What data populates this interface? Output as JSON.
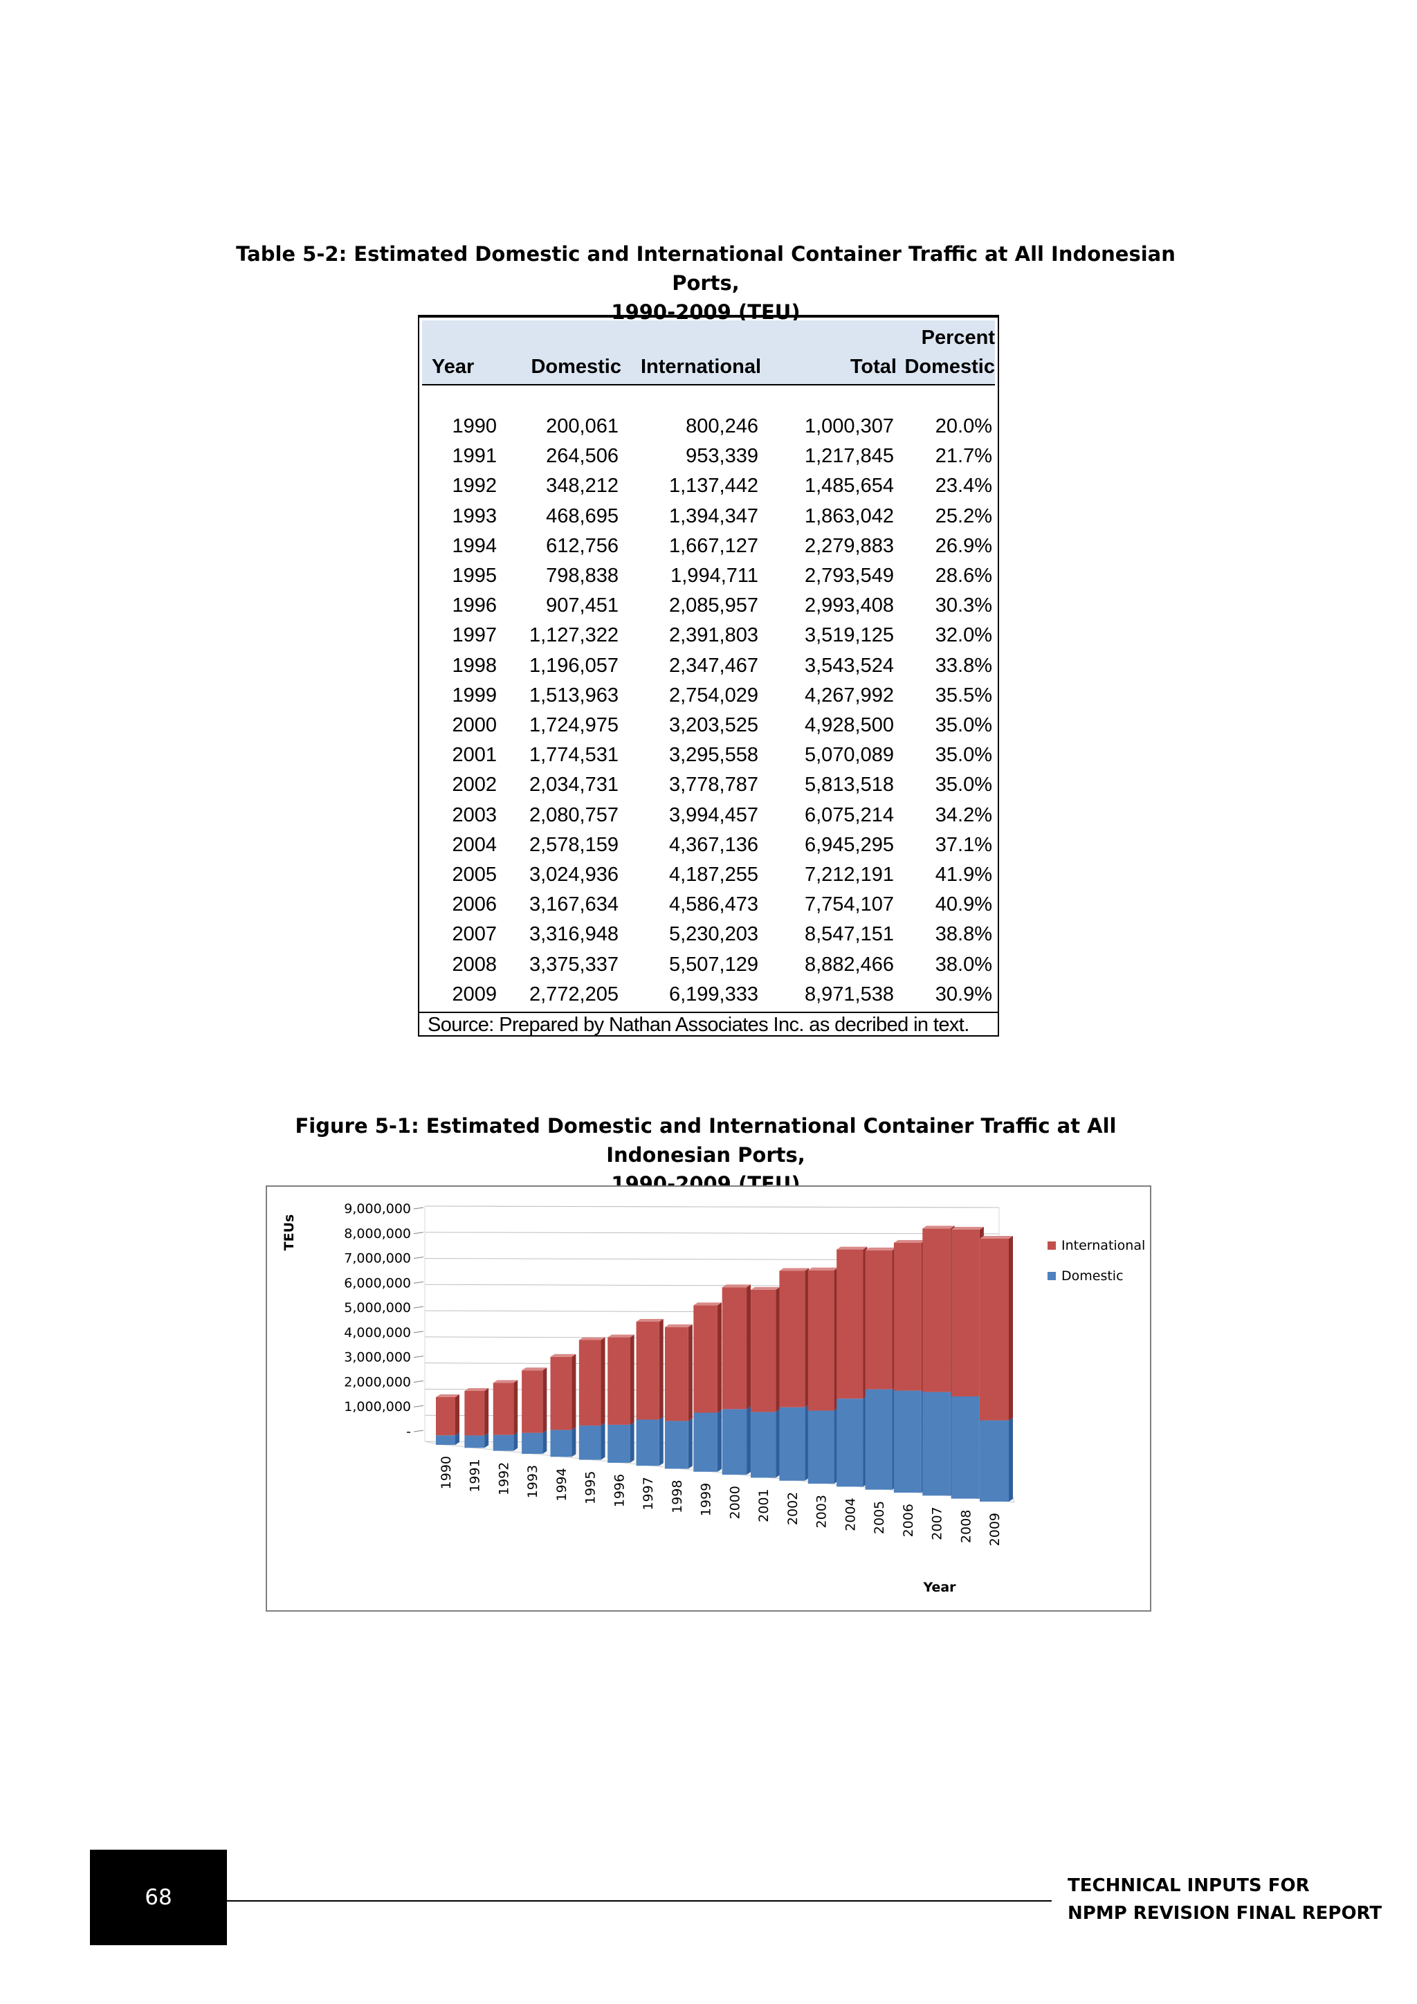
{
  "table": {
    "caption_line1": "Table 5-2: Estimated Domestic and International Container Traffic at All Indonesian Ports,",
    "caption_line2": "1990-2009 (TEU)",
    "headers": {
      "year": "Year",
      "domestic": "Domestic",
      "international": "International",
      "total": "Total",
      "percent_line1": "Percent",
      "percent_line2": "Domestic"
    },
    "rows": [
      {
        "year": "1990",
        "domestic": "200,061",
        "international": "800,246",
        "total": "1,000,307",
        "percent": "20.0%"
      },
      {
        "year": "1991",
        "domestic": "264,506",
        "international": "953,339",
        "total": "1,217,845",
        "percent": "21.7%"
      },
      {
        "year": "1992",
        "domestic": "348,212",
        "international": "1,137,442",
        "total": "1,485,654",
        "percent": "23.4%"
      },
      {
        "year": "1993",
        "domestic": "468,695",
        "international": "1,394,347",
        "total": "1,863,042",
        "percent": "25.2%"
      },
      {
        "year": "1994",
        "domestic": "612,756",
        "international": "1,667,127",
        "total": "2,279,883",
        "percent": "26.9%"
      },
      {
        "year": "1995",
        "domestic": "798,838",
        "international": "1,994,711",
        "total": "2,793,549",
        "percent": "28.6%"
      },
      {
        "year": "1996",
        "domestic": "907,451",
        "international": "2,085,957",
        "total": "2,993,408",
        "percent": "30.3%"
      },
      {
        "year": "1997",
        "domestic": "1,127,322",
        "international": "2,391,803",
        "total": "3,519,125",
        "percent": "32.0%"
      },
      {
        "year": "1998",
        "domestic": "1,196,057",
        "international": "2,347,467",
        "total": "3,543,524",
        "percent": "33.8%"
      },
      {
        "year": "1999",
        "domestic": "1,513,963",
        "international": "2,754,029",
        "total": "4,267,992",
        "percent": "35.5%"
      },
      {
        "year": "2000",
        "domestic": "1,724,975",
        "international": "3,203,525",
        "total": "4,928,500",
        "percent": "35.0%"
      },
      {
        "year": "2001",
        "domestic": "1,774,531",
        "international": "3,295,558",
        "total": "5,070,089",
        "percent": "35.0%"
      },
      {
        "year": "2002",
        "domestic": "2,034,731",
        "international": "3,778,787",
        "total": "5,813,518",
        "percent": "35.0%"
      },
      {
        "year": "2003",
        "domestic": "2,080,757",
        "international": "3,994,457",
        "total": "6,075,214",
        "percent": "34.2%"
      },
      {
        "year": "2004",
        "domestic": "2,578,159",
        "international": "4,367,136",
        "total": "6,945,295",
        "percent": "37.1%"
      },
      {
        "year": "2005",
        "domestic": "3,024,936",
        "international": "4,187,255",
        "total": "7,212,191",
        "percent": "41.9%"
      },
      {
        "year": "2006",
        "domestic": "3,167,634",
        "international": "4,586,473",
        "total": "7,754,107",
        "percent": "40.9%"
      },
      {
        "year": "2007",
        "domestic": "3,316,948",
        "international": "5,230,203",
        "total": "8,547,151",
        "percent": "38.8%"
      },
      {
        "year": "2008",
        "domestic": "3,375,337",
        "international": "5,507,129",
        "total": "8,882,466",
        "percent": "38.0%"
      },
      {
        "year": "2009",
        "domestic": "2,772,205",
        "international": "6,199,333",
        "total": "8,971,538",
        "percent": "30.9%"
      }
    ],
    "source": "Source: Prepared by Nathan Associates Inc. as decribed in text.",
    "header_bg_color": "#dbe5f1"
  },
  "figure": {
    "caption_line1": "Figure 5-1: Estimated Domestic and International Container Traffic at All Indonesian Ports,",
    "caption_line2": "1990-2009 (TEU)"
  },
  "chart_data": {
    "type": "bar",
    "stacked": true,
    "style": "3d-perspective",
    "title": "",
    "xlabel": "Year",
    "ylabel": "TEUs",
    "ylim": [
      0,
      9000000
    ],
    "y_ticks": [
      "-",
      "1,000,000",
      "2,000,000",
      "3,000,000",
      "4,000,000",
      "5,000,000",
      "6,000,000",
      "7,000,000",
      "8,000,000",
      "9,000,000"
    ],
    "grid": true,
    "legend_position": "right",
    "categories": [
      "1990",
      "1991",
      "1992",
      "1993",
      "1994",
      "1995",
      "1996",
      "1997",
      "1998",
      "1999",
      "2000",
      "2001",
      "2002",
      "2003",
      "2004",
      "2005",
      "2006",
      "2007",
      "2008",
      "2009"
    ],
    "series": [
      {
        "name": "Domestic",
        "color": "#4f81bd",
        "values": [
          200061,
          264506,
          348212,
          468695,
          612756,
          798838,
          907451,
          1127322,
          1196057,
          1513963,
          1724975,
          1774531,
          2034731,
          2080757,
          2578159,
          3024936,
          3167634,
          3316948,
          3375337,
          2772205
        ]
      },
      {
        "name": "International",
        "color": "#c0504d",
        "values": [
          800246,
          953339,
          1137442,
          1394347,
          1667127,
          1994711,
          2085957,
          2391803,
          2347467,
          2754029,
          3203525,
          3295558,
          3778787,
          3994457,
          4367136,
          4187255,
          4586473,
          5230203,
          5507129,
          6199333
        ]
      }
    ],
    "legend": [
      "International",
      "Domestic"
    ]
  },
  "footer": {
    "page_number": "68",
    "title_line1": "TECHNICAL INPUTS FOR",
    "title_line2": "NPMP REVISION FINAL REPORT"
  }
}
